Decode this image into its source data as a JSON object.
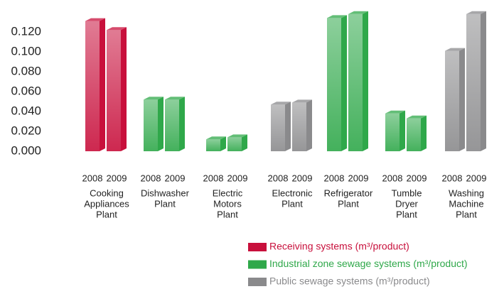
{
  "chart_data": {
    "type": "bar3d",
    "categories": [
      [
        "Cooking",
        "Appliances",
        "Plant"
      ],
      [
        "Dishwasher",
        "Plant"
      ],
      [
        "Electric",
        "Motors",
        "Plant"
      ],
      [
        "Electronic",
        "Plant"
      ],
      [
        "Refrigerator",
        "Plant"
      ],
      [
        "Tumble",
        "Dryer",
        "Plant"
      ],
      [
        "Washing",
        "Machine",
        "Plant"
      ]
    ],
    "years": [
      "2008",
      "2009"
    ],
    "values": [
      [
        0.131,
        0.122
      ],
      [
        0.052,
        0.052
      ],
      [
        0.012,
        0.014
      ],
      [
        0.047,
        0.049
      ],
      [
        0.134,
        0.138
      ],
      [
        0.038,
        0.033
      ],
      [
        0.101,
        0.138
      ]
    ],
    "system": [
      0,
      1,
      1,
      2,
      1,
      1,
      2
    ],
    "series": [
      {
        "name": "Receiving systems (m³/product)",
        "color": "#c8103c"
      },
      {
        "name": "Industrial zone sewage systems (m³/product)",
        "color": "#2fa84a"
      },
      {
        "name": "Public sewage systems (m³/product)",
        "color": "#8a8a8c"
      }
    ],
    "ylim": [
      0,
      0.13
    ],
    "yticks": [
      {
        "value": 0,
        "label": "0.000"
      },
      {
        "value": 0.02,
        "label": "0.020"
      },
      {
        "value": 0.04,
        "label": "0.040"
      },
      {
        "value": 0.06,
        "label": "0.060"
      },
      {
        "value": 0.08,
        "label": "0.080"
      },
      {
        "value": 0.1,
        "label": "0.100"
      },
      {
        "value": 0.12,
        "label": "0.120"
      }
    ]
  }
}
